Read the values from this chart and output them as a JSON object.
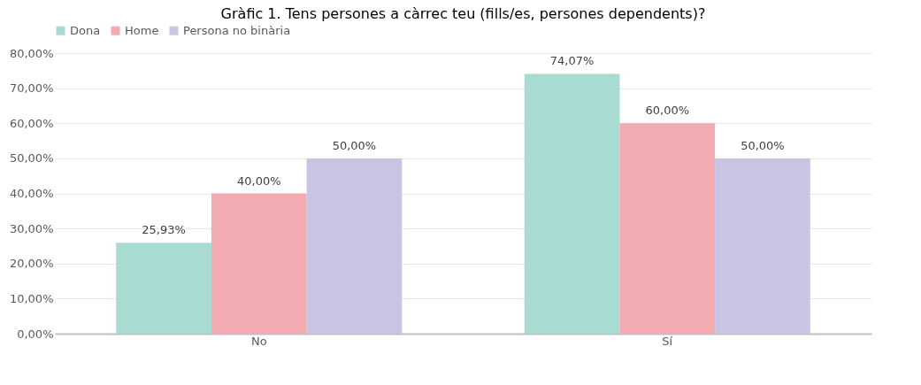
{
  "chart_data": {
    "type": "bar",
    "title": "Gràfic 1. Tens persones a càrrec teu (fills/es, persones dependents)?",
    "categories": [
      "No",
      "Sí"
    ],
    "series": [
      {
        "name": "Dona",
        "color": "#a3d9d0",
        "values": [
          25.93,
          74.07
        ],
        "value_labels": [
          "25,93%",
          "74,07%"
        ]
      },
      {
        "name": "Home",
        "color": "#f2a7ae",
        "values": [
          40,
          60
        ],
        "value_labels": [
          "40,00%",
          "60,00%"
        ]
      },
      {
        "name": "Persona no binària",
        "color": "#c5c1e3",
        "values": [
          50,
          50
        ],
        "value_labels": [
          "50,00%",
          "50,00%"
        ]
      }
    ],
    "ylim": [
      0,
      80
    ],
    "yticks": [
      {
        "value": 0,
        "label": "0,00%"
      },
      {
        "value": 10,
        "label": "10,00%"
      },
      {
        "value": 20,
        "label": "20,00%"
      },
      {
        "value": 30,
        "label": "30,00%"
      },
      {
        "value": 40,
        "label": "40,00%"
      },
      {
        "value": 50,
        "label": "50,00%"
      },
      {
        "value": 60,
        "label": "60,00%"
      },
      {
        "value": 70,
        "label": "70,00%"
      },
      {
        "value": 80,
        "label": "80,00%"
      }
    ],
    "grid": "y",
    "legend": "top"
  }
}
